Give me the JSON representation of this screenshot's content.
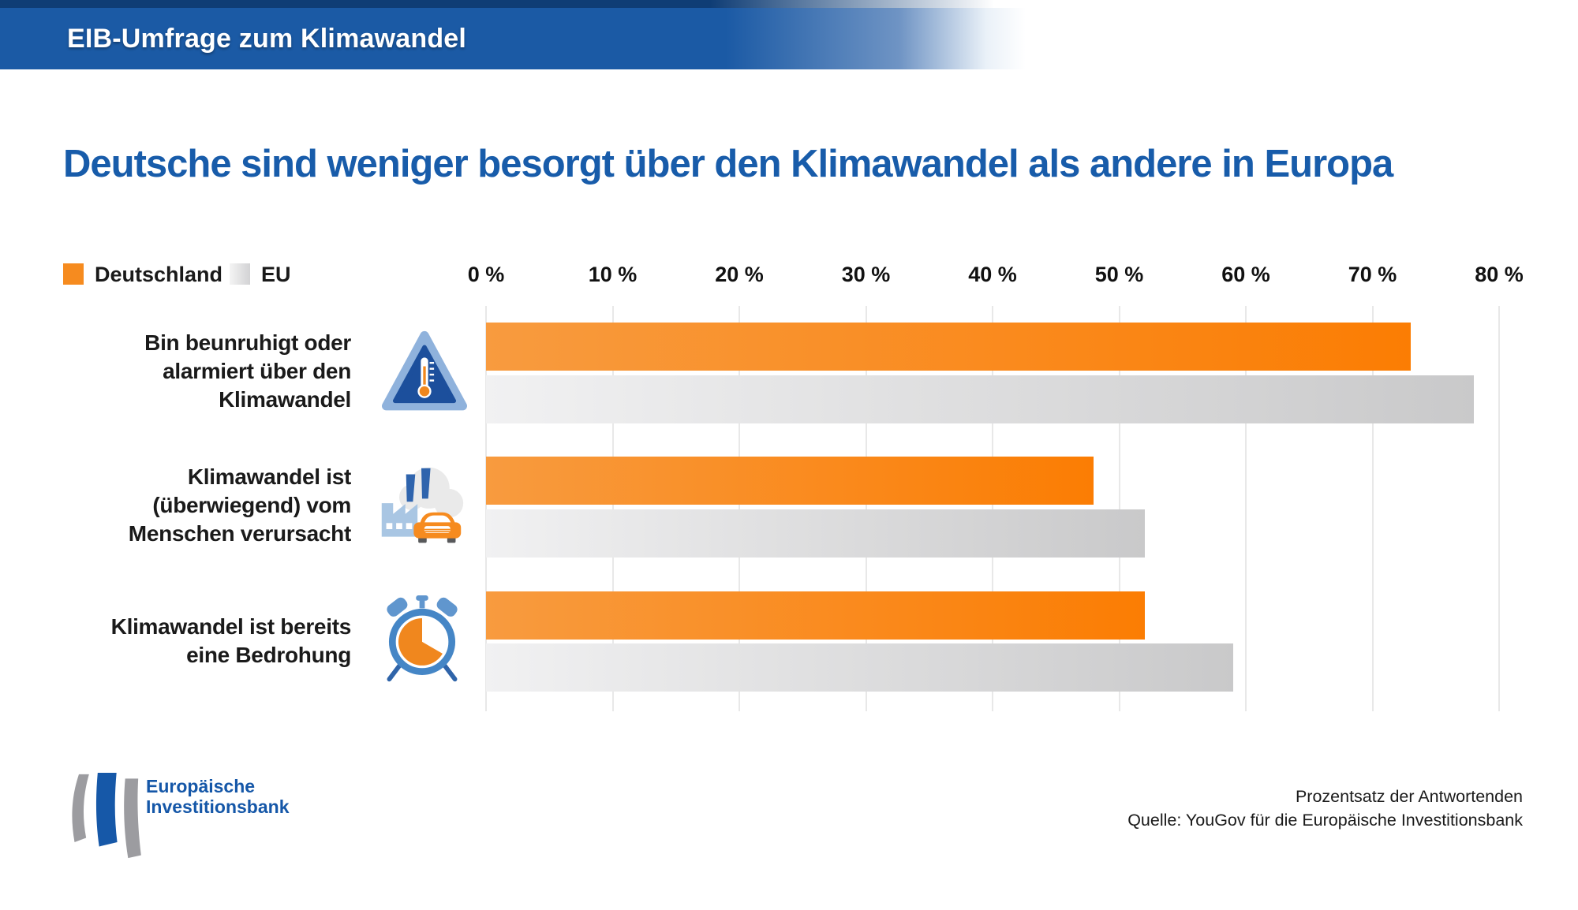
{
  "header": {
    "title": "EIB-Umfrage zum Klimawandel"
  },
  "page_title": "Deutsche sind weniger besorgt über den Klimawandel als andere in Europa",
  "legend": {
    "deutschland_label": "Deutschland",
    "eu_label": "EU"
  },
  "axis_ticks": [
    "0 %",
    "10 %",
    "20 %",
    "30 %",
    "40 %",
    "50 %",
    "60 %",
    "70 %",
    "80 %"
  ],
  "rows": [
    {
      "label_lines": [
        "Bin beunruhigt oder",
        "alarmiert über den",
        "Klimawandel"
      ],
      "icon": "warning-triangle-thermometer-icon",
      "deutschland": 73,
      "eu": 78
    },
    {
      "label_lines": [
        "Klimawandel ist",
        "(überwiegend) vom",
        "Menschen verursacht"
      ],
      "icon": "factory-car-emissions-icon",
      "deutschland": 48,
      "eu": 52
    },
    {
      "label_lines": [
        "Klimawandel ist bereits",
        "eine Bedrohung"
      ],
      "icon": "alarm-clock-icon",
      "deutschland": 52,
      "eu": 59
    }
  ],
  "chart_data": {
    "type": "bar",
    "orientation": "horizontal",
    "title": "Deutsche sind weniger besorgt über den Klimawandel als andere in Europa",
    "categories": [
      "Bin beunruhigt oder alarmiert über den Klimawandel",
      "Klimawandel ist (überwiegend) vom Menschen verursacht",
      "Klimawandel ist bereits eine Bedrohung"
    ],
    "series": [
      {
        "name": "Deutschland",
        "values": [
          73,
          48,
          52
        ]
      },
      {
        "name": "EU",
        "values": [
          78,
          52,
          59
        ]
      }
    ],
    "xlim": [
      0,
      80
    ],
    "x_tick_step": 10,
    "x_unit": "%",
    "grid": "vertical",
    "legend_position": "top-left"
  },
  "colors": {
    "header_blue": "#1b5aa5",
    "title_blue": "#185caa",
    "deutschland_bar_start": "#f89b3f",
    "deutschland_bar_end": "#fb7d03",
    "deutschland_legend": "#f68b1f",
    "eu_bar_start": "#f1f1f2",
    "eu_bar_end": "#c9c9ca",
    "gridline": "#e8e8e8",
    "text_dark": "#1a1a1a",
    "eib_logo_blue": "#1557a8",
    "eib_logo_gray": "#9c9ca0"
  },
  "footer": {
    "logo_line1": "Europäische",
    "logo_line2": "Investitionsbank",
    "note_line1": "Prozentsatz der Antwortenden",
    "note_line2": "Quelle: YouGov für die Europäische Investitionsbank"
  }
}
